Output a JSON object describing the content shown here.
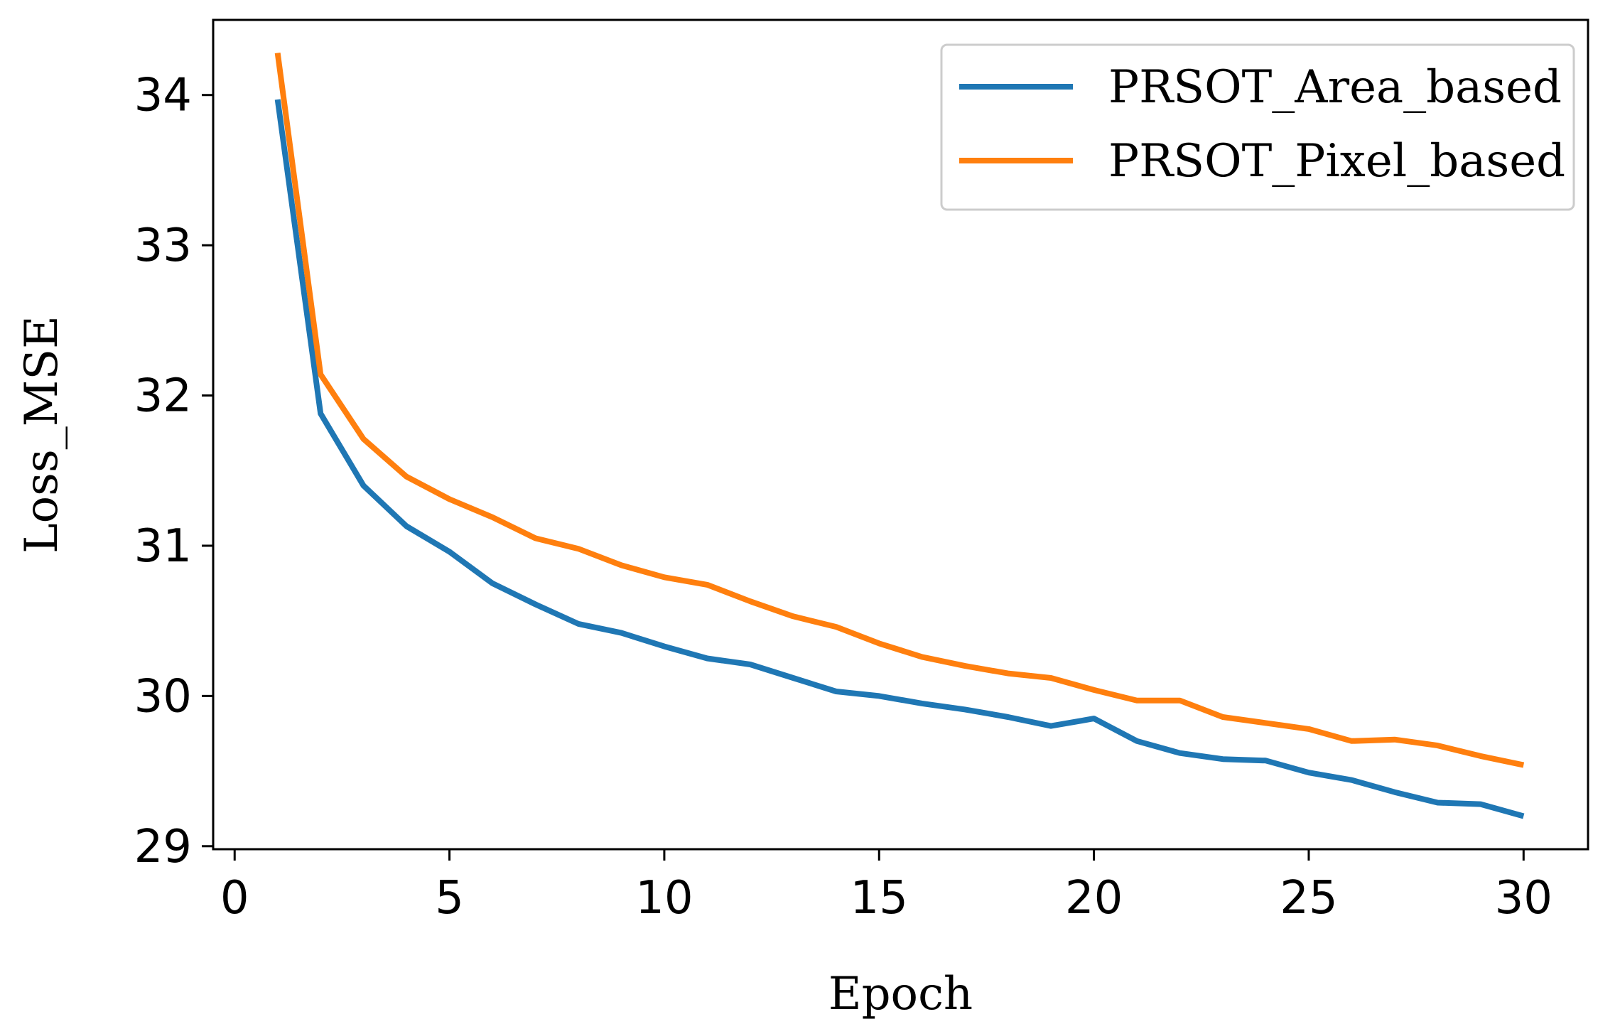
{
  "chart_data": {
    "type": "line",
    "title": "",
    "xlabel": "Epoch",
    "ylabel": "Loss_MSE",
    "xlim": [
      -0.5,
      31.5
    ],
    "ylim": [
      28.98,
      34.5
    ],
    "xticks": [
      0,
      5,
      10,
      15,
      20,
      25,
      30
    ],
    "yticks": [
      29,
      30,
      31,
      32,
      33,
      34
    ],
    "xtick_labels": [
      "0",
      "5",
      "10",
      "15",
      "20",
      "25",
      "30"
    ],
    "ytick_labels": [
      "29",
      "30",
      "31",
      "32",
      "33",
      "34"
    ],
    "legend_position": "top-right",
    "x": [
      1,
      2,
      3,
      4,
      5,
      6,
      7,
      8,
      9,
      10,
      11,
      12,
      13,
      14,
      15,
      16,
      17,
      18,
      19,
      20,
      21,
      22,
      23,
      24,
      25,
      26,
      27,
      28,
      29,
      30
    ],
    "series": [
      {
        "name": "PRSOT_Area_based",
        "color": "#1f77b4",
        "values": [
          33.97,
          31.88,
          31.4,
          31.13,
          30.96,
          30.75,
          30.61,
          30.48,
          30.42,
          30.33,
          30.25,
          30.21,
          30.12,
          30.03,
          30.0,
          29.95,
          29.91,
          29.86,
          29.8,
          29.85,
          29.7,
          29.62,
          29.58,
          29.57,
          29.49,
          29.44,
          29.36,
          29.29,
          29.28,
          29.2
        ]
      },
      {
        "name": "PRSOT_Pixel_based",
        "color": "#ff7f0e",
        "values": [
          34.28,
          32.14,
          31.71,
          31.46,
          31.31,
          31.19,
          31.05,
          30.98,
          30.87,
          30.79,
          30.74,
          30.63,
          30.53,
          30.46,
          30.35,
          30.26,
          30.2,
          30.15,
          30.12,
          30.04,
          29.97,
          29.97,
          29.86,
          29.82,
          29.78,
          29.7,
          29.71,
          29.67,
          29.6,
          29.54
        ]
      }
    ]
  }
}
